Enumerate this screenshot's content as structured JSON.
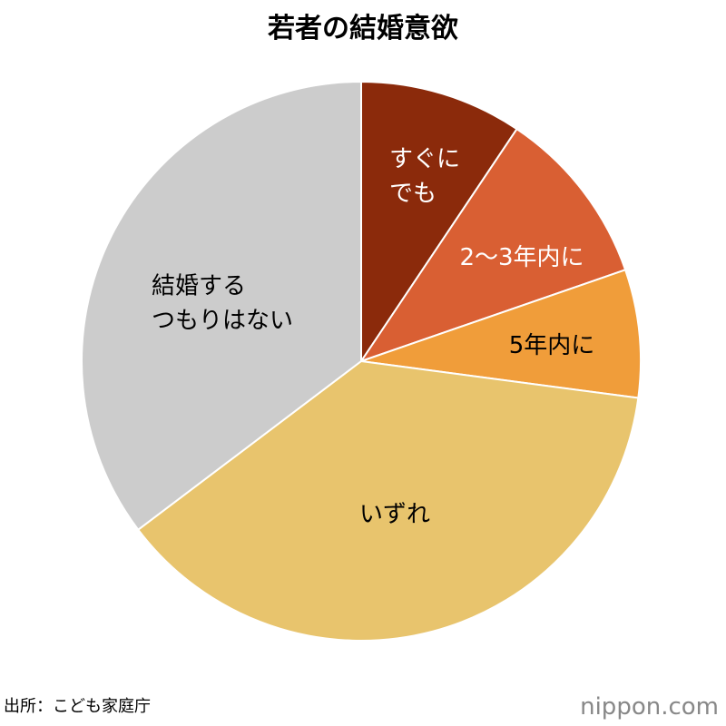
{
  "chart_data": {
    "type": "pie",
    "title": "若者の結婚意欲",
    "categories": [
      "すぐに\nでも",
      "2〜3年内に",
      "5年内に",
      "いずれ",
      "結婚する\nつもりはない"
    ],
    "values": [
      9.4,
      10.3,
      7.4,
      37.6,
      35.3
    ],
    "colors": [
      "#8b2a0b",
      "#d95f33",
      "#f09d3a",
      "#e8c46d",
      "#cccccc"
    ],
    "label_colors": [
      "#ffffff",
      "#ffffff",
      "#000000",
      "#000000",
      "#000000"
    ],
    "source": "出所：こども家庭庁",
    "brand": "nippon.com"
  }
}
